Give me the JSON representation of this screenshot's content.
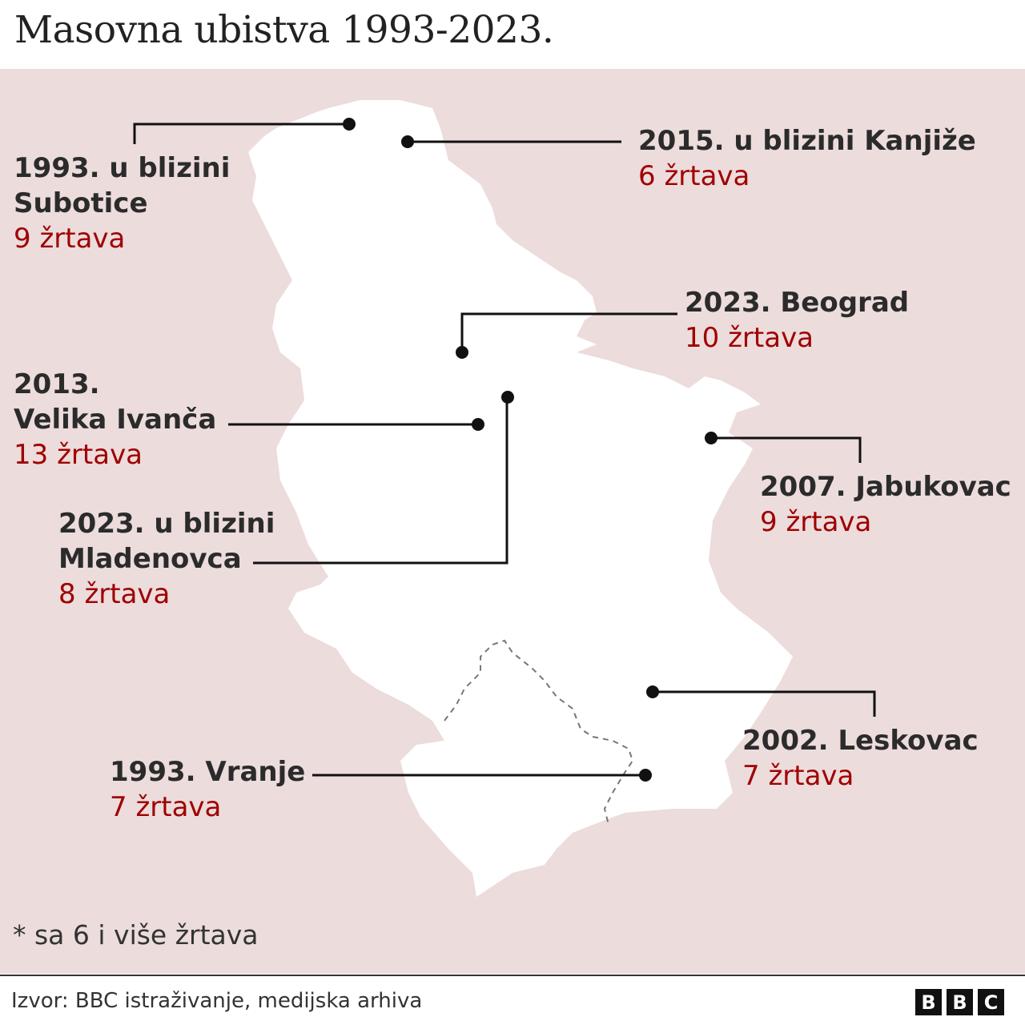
{
  "title": "Masovna ubistva 1993-2023.",
  "colors": {
    "background": "#ecdcdc",
    "land": "#ffffff",
    "victims_text": "#a00000",
    "line": "#111111"
  },
  "events": [
    {
      "name": "1993. u blizini\nSubotice",
      "victims": "9 žrtava"
    },
    {
      "name": "2015. u blizini Kanjiže",
      "victims": "6 žrtava"
    },
    {
      "name": "2023. Beograd",
      "victims": "10 žrtava"
    },
    {
      "name": "2013.\nVelika Ivanča",
      "victims": "13 žrtava"
    },
    {
      "name": "2007. Jabukovac",
      "victims": "9 žrtava"
    },
    {
      "name": "2023. u blizini\nMladenovca",
      "victims": "8 žrtava"
    },
    {
      "name": "2002. Leskovac",
      "victims": "7 žrtava"
    },
    {
      "name": "1993. Vranje",
      "victims": "7 žrtava"
    }
  ],
  "note": "* sa 6 i više žrtava",
  "source": "Izvor: BBC istraživanje, medijska arhiva",
  "logo": [
    "B",
    "B",
    "C"
  ]
}
